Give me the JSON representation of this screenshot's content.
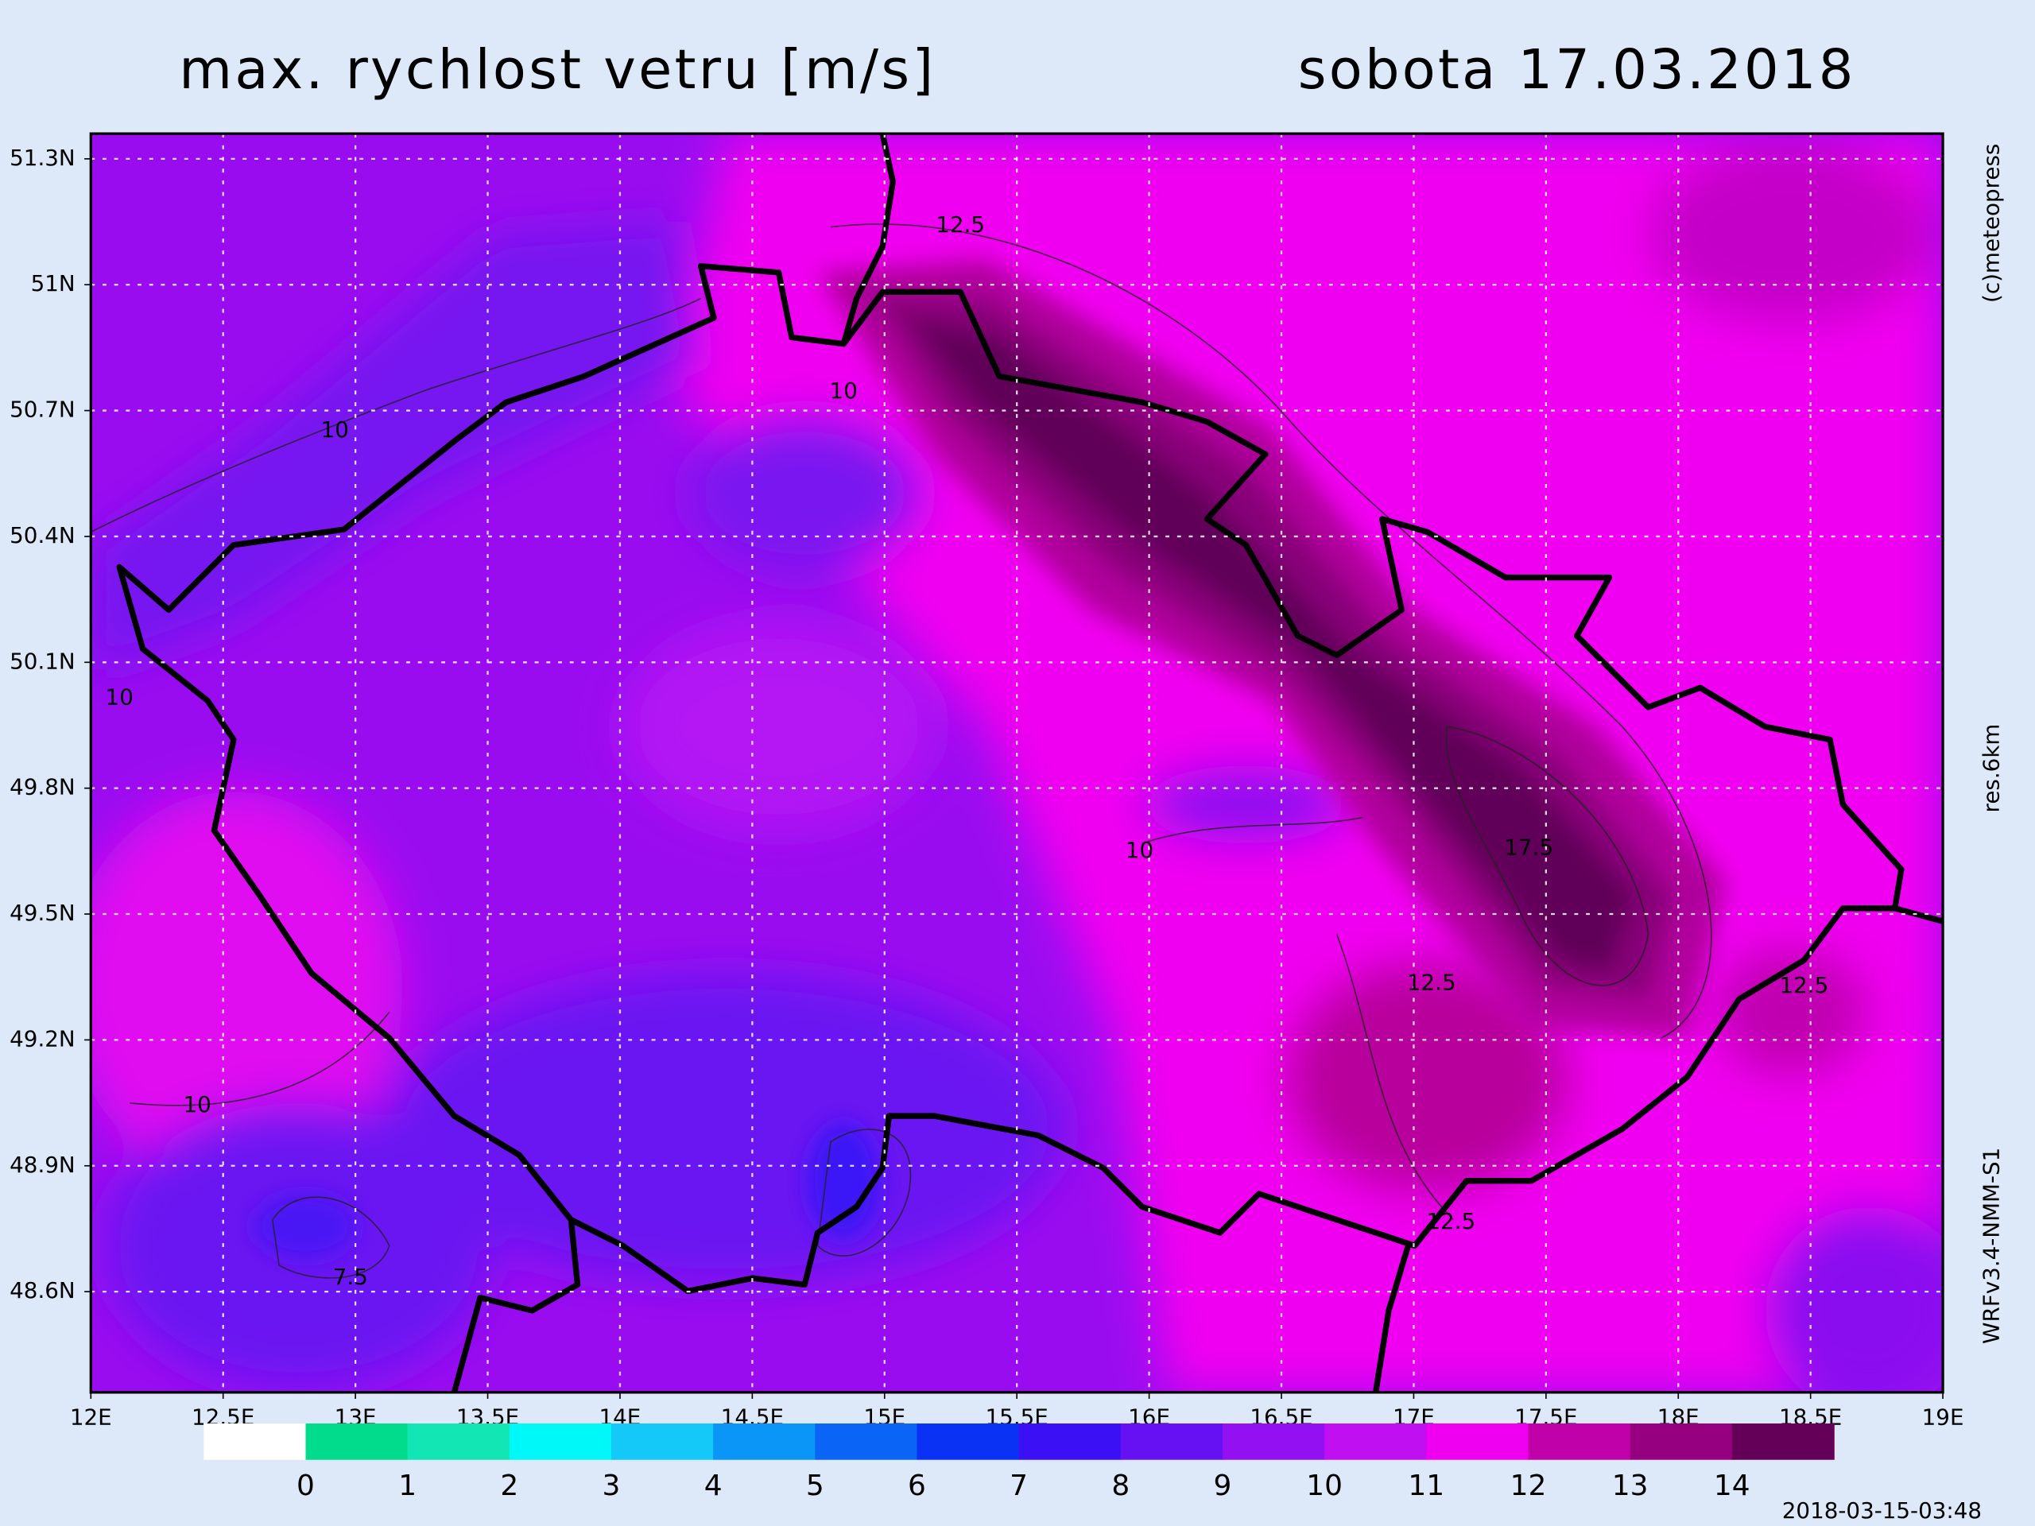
{
  "title": "max. rychlost vetru [m/s]",
  "date": "sobota 17.03.2018",
  "lonlim": [
    12,
    19
  ],
  "latlim": [
    48.36,
    51.36
  ],
  "lon_ticks": [
    {
      "value": 12,
      "label": "12E"
    },
    {
      "value": 12.5,
      "label": "12.5E"
    },
    {
      "value": 13,
      "label": "13E"
    },
    {
      "value": 13.5,
      "label": "13.5E"
    },
    {
      "value": 14,
      "label": "14E"
    },
    {
      "value": 14.5,
      "label": "14.5E"
    },
    {
      "value": 15,
      "label": "15E"
    },
    {
      "value": 15.5,
      "label": "15.5E"
    },
    {
      "value": 16,
      "label": "16E"
    },
    {
      "value": 16.5,
      "label": "16.5E"
    },
    {
      "value": 17,
      "label": "17E"
    },
    {
      "value": 17.5,
      "label": "17.5E"
    },
    {
      "value": 18,
      "label": "18E"
    },
    {
      "value": 18.5,
      "label": "18.5E"
    },
    {
      "value": 19,
      "label": "19E"
    }
  ],
  "lat_ticks": [
    {
      "value": 51.3,
      "label": "51.3N"
    },
    {
      "value": 51,
      "label": "51N"
    },
    {
      "value": 50.7,
      "label": "50.7N"
    },
    {
      "value": 50.4,
      "label": "50.4N"
    },
    {
      "value": 50.1,
      "label": "50.1N"
    },
    {
      "value": 49.8,
      "label": "49.8N"
    },
    {
      "value": 49.5,
      "label": "49.5N"
    },
    {
      "value": 49.2,
      "label": "49.2N"
    },
    {
      "value": 48.9,
      "label": "48.9N"
    },
    {
      "value": 48.6,
      "label": "48.6N"
    }
  ],
  "grid": true,
  "colorbar": {
    "levels": [
      0,
      1,
      2,
      3,
      4,
      5,
      6,
      7,
      8,
      9,
      10,
      11,
      12,
      13,
      14
    ],
    "colors": [
      "#ffffff",
      "#00dc8c",
      "#12e6b4",
      "#00f8f8",
      "#14c8f8",
      "#0a96f6",
      "#0a64f6",
      "#0a32f4",
      "#3c10f4",
      "#6610f4",
      "#9210f2",
      "#c010f2",
      "#f000f0",
      "#c000a8",
      "#960080",
      "#640058"
    ]
  },
  "contour_labels": [
    12.5,
    10,
    10,
    10,
    17.5,
    10,
    12.5,
    12.5,
    10,
    12.5,
    7.5
  ],
  "credits": "(c)meteopress",
  "resolution": "res.6km",
  "model": "WRFv3.4-NMM-S1",
  "timestamp": "2018-03-15-03:48"
}
